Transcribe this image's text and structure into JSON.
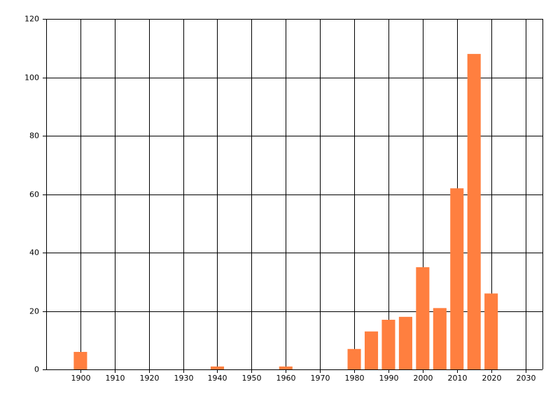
{
  "chart_data": {
    "type": "bar",
    "x": [
      1900,
      1940,
      1960,
      1980,
      1985,
      1990,
      1995,
      2000,
      2005,
      2010,
      2015,
      2020
    ],
    "values": [
      6,
      1,
      1,
      7,
      13,
      17,
      18,
      35,
      21,
      62,
      108,
      26
    ],
    "color": "#ff7f3f",
    "xlim": [
      1890,
      2035
    ],
    "xticks": [
      1900,
      1910,
      1920,
      1930,
      1940,
      1950,
      1960,
      1970,
      1980,
      1990,
      2000,
      2010,
      2020,
      2030
    ],
    "ylim": [
      0,
      120
    ],
    "yticks": [
      0,
      20,
      40,
      60,
      80,
      100,
      120
    ],
    "grid": true
  }
}
